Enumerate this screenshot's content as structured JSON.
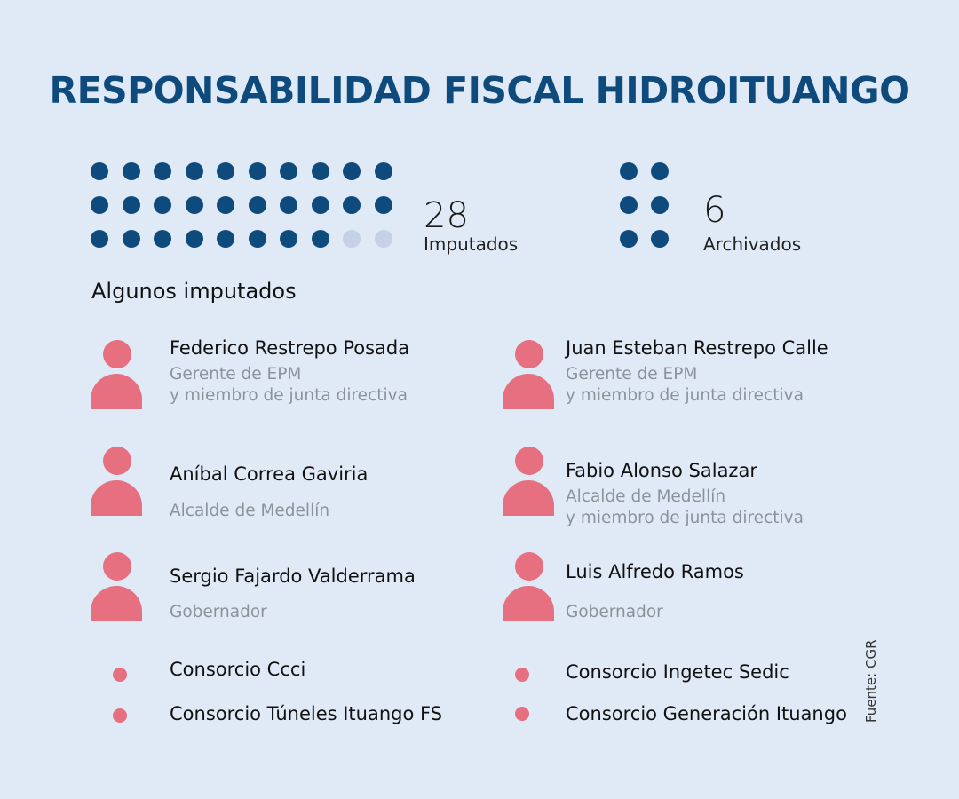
{
  "title": "RESPONSABILIDAD FISCAL HIDROITUANGO",
  "colors": {
    "background": "#e0eaf6",
    "title": "#0e4b7c",
    "dot_filled": "#0e4b7c",
    "dot_empty": "#c4d2e3",
    "person": "#e66f80",
    "role_text": "#8c929a"
  },
  "stats": {
    "imputados": {
      "value": "28",
      "label": "Imputados",
      "filled": 28,
      "total": 30
    },
    "archivados": {
      "value": "6",
      "label": "Archivados",
      "filled": 6,
      "total": 6
    }
  },
  "section_title": "Algunos imputados",
  "people": [
    {
      "name": "Federico Restrepo Posada",
      "role_1": "Gerente de EPM",
      "role_2": "y miembro de junta directiva"
    },
    {
      "name": "Juan Esteban Restrepo Calle",
      "role_1": "Gerente de EPM",
      "role_2": "y miembro de junta directiva"
    },
    {
      "name": "Aníbal Correa Gaviria",
      "role_1": "Alcalde de Medellín",
      "role_2": ""
    },
    {
      "name": "Fabio Alonso Salazar",
      "role_1": "Alcalde de Medellín",
      "role_2": "y miembro de junta directiva"
    },
    {
      "name": "Sergio Fajardo Valderrama",
      "role_1": "Gobernador",
      "role_2": ""
    },
    {
      "name": "Luis Alfredo Ramos",
      "role_1": "Gobernador",
      "role_2": ""
    }
  ],
  "consortia": [
    {
      "name": "Consorcio Ccci"
    },
    {
      "name": "Consorcio Ingetec Sedic"
    },
    {
      "name": "Consorcio Túneles Ituango FS"
    },
    {
      "name": "Consorcio Generación Ituango"
    }
  ],
  "source": "Fuente: CGR"
}
